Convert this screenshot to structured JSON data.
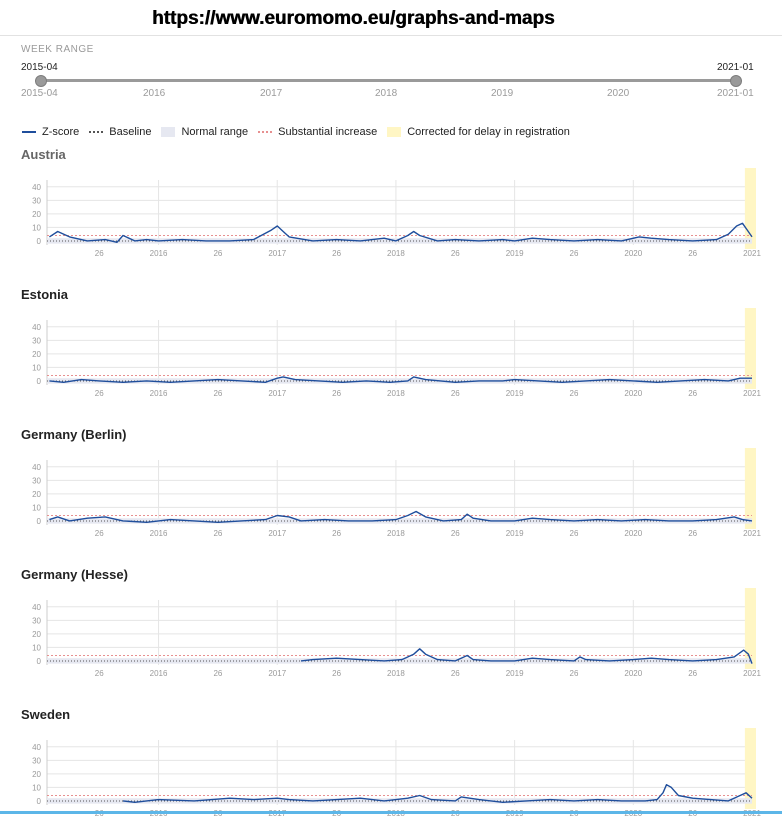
{
  "header": {
    "url": "https://www.euromomo.eu/graphs-and-maps"
  },
  "week_range": {
    "label": "WEEK RANGE",
    "start_value": "2015-04",
    "end_value": "2021-01",
    "start_tick": "2015-04",
    "end_tick": "2021-01",
    "year_ticks": [
      "2016",
      "2017",
      "2018",
      "2019",
      "2020"
    ],
    "start_fraction": 0,
    "end_fraction": 1
  },
  "legend": {
    "zscore": "Z-score",
    "baseline": "Baseline",
    "normal_range": "Normal range",
    "substantial": "Substantial increase",
    "corrected": "Corrected for delay in registration"
  },
  "colors": {
    "zscore_line": "#1f4e9c",
    "baseline": "#555555",
    "normal_range": "#e6e8f1",
    "substantial": "#e79090",
    "corrected": "#fff6c4",
    "grid": "#e5e5e5",
    "tick_text": "#9a9a9a"
  },
  "chart_data": [
    {
      "type": "line",
      "title": "Austria",
      "y_ticks": [
        0,
        10,
        20,
        30,
        40
      ],
      "ylim": [
        -3,
        45
      ],
      "x_ticks": [
        "26",
        "2016",
        "26",
        "2017",
        "26",
        "2018",
        "26",
        "2019",
        "26",
        "2020",
        "26",
        "2021"
      ],
      "normal_range": [
        -2,
        2
      ],
      "substantial_line": 4,
      "baseline": 0,
      "corrected_range": [
        2020.94,
        2021.0
      ],
      "series": [
        {
          "points": [
            [
              2015.08,
              3
            ],
            [
              2015.15,
              7
            ],
            [
              2015.25,
              3
            ],
            [
              2015.4,
              0
            ],
            [
              2015.55,
              1
            ],
            [
              2015.65,
              -1
            ],
            [
              2015.7,
              4
            ],
            [
              2015.8,
              0
            ],
            [
              2015.9,
              1
            ],
            [
              2016.0,
              0
            ],
            [
              2016.2,
              1
            ],
            [
              2016.4,
              0
            ],
            [
              2016.6,
              0
            ],
            [
              2016.8,
              1
            ],
            [
              2016.95,
              8
            ],
            [
              2017.0,
              11
            ],
            [
              2017.05,
              7
            ],
            [
              2017.1,
              3
            ],
            [
              2017.3,
              0
            ],
            [
              2017.5,
              1
            ],
            [
              2017.7,
              0
            ],
            [
              2017.9,
              2
            ],
            [
              2018.0,
              0
            ],
            [
              2018.1,
              4
            ],
            [
              2018.15,
              7
            ],
            [
              2018.2,
              4
            ],
            [
              2018.35,
              0
            ],
            [
              2018.5,
              1
            ],
            [
              2018.7,
              0
            ],
            [
              2018.9,
              1
            ],
            [
              2019.0,
              0
            ],
            [
              2019.15,
              2
            ],
            [
              2019.3,
              1
            ],
            [
              2019.5,
              0
            ],
            [
              2019.7,
              1
            ],
            [
              2019.9,
              0
            ],
            [
              2020.05,
              3
            ],
            [
              2020.15,
              2
            ],
            [
              2020.3,
              1
            ],
            [
              2020.5,
              0
            ],
            [
              2020.7,
              1
            ],
            [
              2020.8,
              5
            ],
            [
              2020.87,
              11
            ],
            [
              2020.92,
              13
            ],
            [
              2020.96,
              8
            ],
            [
              2021.0,
              3
            ]
          ]
        }
      ]
    },
    {
      "type": "line",
      "title": "Estonia",
      "y_ticks": [
        0,
        10,
        20,
        30,
        40
      ],
      "ylim": [
        -3,
        45
      ],
      "x_ticks": [
        "26",
        "2016",
        "26",
        "2017",
        "26",
        "2018",
        "26",
        "2019",
        "26",
        "2020",
        "26",
        "2021"
      ],
      "normal_range": [
        -2,
        2
      ],
      "substantial_line": 4,
      "baseline": 0,
      "corrected_range": [
        2020.94,
        2021.0
      ],
      "series": [
        {
          "points": [
            [
              2015.08,
              0
            ],
            [
              2015.2,
              -1
            ],
            [
              2015.35,
              1
            ],
            [
              2015.5,
              0
            ],
            [
              2015.7,
              -1
            ],
            [
              2015.9,
              0
            ],
            [
              2016.1,
              -1
            ],
            [
              2016.3,
              0
            ],
            [
              2016.5,
              1
            ],
            [
              2016.7,
              0
            ],
            [
              2016.9,
              -1
            ],
            [
              2017.0,
              2
            ],
            [
              2017.05,
              3
            ],
            [
              2017.15,
              1
            ],
            [
              2017.35,
              0
            ],
            [
              2017.55,
              -1
            ],
            [
              2017.75,
              0
            ],
            [
              2017.95,
              -1
            ],
            [
              2018.1,
              0
            ],
            [
              2018.15,
              3
            ],
            [
              2018.25,
              1
            ],
            [
              2018.5,
              -1
            ],
            [
              2018.7,
              0
            ],
            [
              2018.9,
              0
            ],
            [
              2019.0,
              1
            ],
            [
              2019.2,
              0
            ],
            [
              2019.4,
              -1
            ],
            [
              2019.6,
              0
            ],
            [
              2019.8,
              1
            ],
            [
              2020.0,
              0
            ],
            [
              2020.2,
              -1
            ],
            [
              2020.4,
              0
            ],
            [
              2020.6,
              1
            ],
            [
              2020.8,
              0
            ],
            [
              2020.9,
              2
            ],
            [
              2021.0,
              2
            ]
          ]
        }
      ]
    },
    {
      "type": "line",
      "title": "Germany (Berlin)",
      "y_ticks": [
        0,
        10,
        20,
        30,
        40
      ],
      "ylim": [
        -3,
        45
      ],
      "x_ticks": [
        "26",
        "2016",
        "26",
        "2017",
        "26",
        "2018",
        "26",
        "2019",
        "26",
        "2020",
        "26",
        "2021"
      ],
      "normal_range": [
        -2,
        2
      ],
      "substantial_line": 4,
      "baseline": 0,
      "corrected_range": [
        2020.94,
        2021.0
      ],
      "series": [
        {
          "points": [
            [
              2015.08,
              1
            ],
            [
              2015.15,
              3
            ],
            [
              2015.25,
              0
            ],
            [
              2015.4,
              2
            ],
            [
              2015.55,
              3
            ],
            [
              2015.7,
              0
            ],
            [
              2015.9,
              -1
            ],
            [
              2016.1,
              1
            ],
            [
              2016.3,
              0
            ],
            [
              2016.5,
              -1
            ],
            [
              2016.7,
              0
            ],
            [
              2016.9,
              1
            ],
            [
              2017.0,
              4
            ],
            [
              2017.1,
              3
            ],
            [
              2017.2,
              0
            ],
            [
              2017.4,
              1
            ],
            [
              2017.6,
              0
            ],
            [
              2017.8,
              0
            ],
            [
              2018.0,
              1
            ],
            [
              2018.1,
              4
            ],
            [
              2018.17,
              7
            ],
            [
              2018.25,
              3
            ],
            [
              2018.4,
              0
            ],
            [
              2018.55,
              1
            ],
            [
              2018.6,
              5
            ],
            [
              2018.65,
              2
            ],
            [
              2018.8,
              0
            ],
            [
              2019.0,
              0
            ],
            [
              2019.15,
              2
            ],
            [
              2019.3,
              1
            ],
            [
              2019.5,
              0
            ],
            [
              2019.7,
              1
            ],
            [
              2019.9,
              0
            ],
            [
              2020.1,
              1
            ],
            [
              2020.3,
              0
            ],
            [
              2020.5,
              0
            ],
            [
              2020.7,
              1
            ],
            [
              2020.85,
              3
            ],
            [
              2020.92,
              1
            ],
            [
              2021.0,
              0
            ]
          ]
        }
      ]
    },
    {
      "type": "line",
      "title": "Germany (Hesse)",
      "y_ticks": [
        0,
        10,
        20,
        30,
        40
      ],
      "ylim": [
        -3,
        45
      ],
      "x_ticks": [
        "26",
        "2016",
        "26",
        "2017",
        "26",
        "2018",
        "26",
        "2019",
        "26",
        "2020",
        "26",
        "2021"
      ],
      "normal_range": [
        -2,
        2
      ],
      "substantial_line": 4,
      "baseline": 0,
      "corrected_range": [
        2020.94,
        2021.0
      ],
      "series": [
        {
          "points": [
            [
              2017.2,
              0
            ],
            [
              2017.3,
              1
            ],
            [
              2017.5,
              2
            ],
            [
              2017.7,
              1
            ],
            [
              2017.9,
              0
            ],
            [
              2018.05,
              1
            ],
            [
              2018.15,
              5
            ],
            [
              2018.2,
              9
            ],
            [
              2018.25,
              5
            ],
            [
              2018.35,
              1
            ],
            [
              2018.5,
              0
            ],
            [
              2018.6,
              4
            ],
            [
              2018.65,
              1
            ],
            [
              2018.8,
              0
            ],
            [
              2019.0,
              0
            ],
            [
              2019.15,
              2
            ],
            [
              2019.3,
              1
            ],
            [
              2019.5,
              0
            ],
            [
              2019.55,
              3
            ],
            [
              2019.6,
              1
            ],
            [
              2019.8,
              0
            ],
            [
              2020.0,
              1
            ],
            [
              2020.15,
              2
            ],
            [
              2020.3,
              1
            ],
            [
              2020.5,
              0
            ],
            [
              2020.7,
              1
            ],
            [
              2020.85,
              3
            ],
            [
              2020.93,
              8
            ],
            [
              2020.97,
              5
            ],
            [
              2021.0,
              -2
            ]
          ]
        }
      ]
    },
    {
      "type": "line",
      "title": "Sweden",
      "y_ticks": [
        0,
        10,
        20,
        30,
        40
      ],
      "ylim": [
        -3,
        45
      ],
      "x_ticks": [
        "26",
        "2016",
        "26",
        "2017",
        "26",
        "2018",
        "26",
        "2019",
        "26",
        "2020",
        "26",
        "2021"
      ],
      "normal_range": [
        -2,
        2
      ],
      "substantial_line": 4,
      "baseline": 0,
      "corrected_range": [
        2020.94,
        2021.0
      ],
      "series": [
        {
          "points": [
            [
              2015.7,
              0
            ],
            [
              2015.8,
              -1
            ],
            [
              2016.0,
              1
            ],
            [
              2016.3,
              0
            ],
            [
              2016.6,
              2
            ],
            [
              2016.8,
              1
            ],
            [
              2017.0,
              2
            ],
            [
              2017.1,
              1
            ],
            [
              2017.3,
              0
            ],
            [
              2017.5,
              1
            ],
            [
              2017.7,
              2
            ],
            [
              2017.9,
              0
            ],
            [
              2018.1,
              2
            ],
            [
              2018.2,
              4
            ],
            [
              2018.3,
              1
            ],
            [
              2018.5,
              0
            ],
            [
              2018.55,
              3
            ],
            [
              2018.7,
              1
            ],
            [
              2018.9,
              -1
            ],
            [
              2019.1,
              0
            ],
            [
              2019.3,
              1
            ],
            [
              2019.5,
              0
            ],
            [
              2019.7,
              1
            ],
            [
              2019.9,
              0
            ],
            [
              2020.1,
              0
            ],
            [
              2020.2,
              1
            ],
            [
              2020.25,
              6
            ],
            [
              2020.28,
              12
            ],
            [
              2020.32,
              10
            ],
            [
              2020.38,
              4
            ],
            [
              2020.5,
              2
            ],
            [
              2020.65,
              1
            ],
            [
              2020.8,
              0
            ],
            [
              2020.9,
              4
            ],
            [
              2020.95,
              6
            ],
            [
              2021.0,
              2
            ]
          ]
        }
      ]
    }
  ]
}
